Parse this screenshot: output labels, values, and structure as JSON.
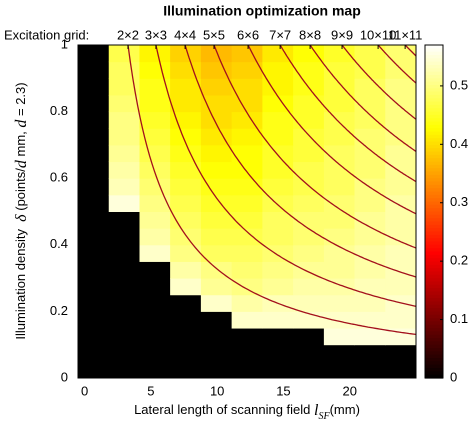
{
  "chart_data": {
    "type": "heatmap",
    "title": "Illumination optimization map",
    "top_axis_label": "Excitation grid:",
    "xlabel": [
      {
        "text": "Lateral length of scanning field "
      },
      {
        "text": "l",
        "italic": true
      },
      {
        "text": "SF",
        "italic": true,
        "subscript": true
      },
      {
        "text": "(mm)"
      }
    ],
    "ylabel": [
      {
        "text": "Illumination density  "
      },
      {
        "text": "δ",
        "italic": true
      },
      {
        "text": " (points/"
      },
      {
        "text": "d",
        "italic": true
      },
      {
        "text": " mm, "
      },
      {
        "text": "d",
        "italic": true
      },
      {
        "text": " = 2.3)"
      }
    ],
    "colormap": "hot",
    "xlim": [
      -0.5,
      25
    ],
    "ylim": [
      0,
      1
    ],
    "clim": [
      0,
      0.57
    ],
    "xticks": [
      0,
      5,
      10,
      15,
      20
    ],
    "yticks": [
      0,
      0.2,
      0.4,
      0.6,
      0.8,
      1
    ],
    "cticks": [
      0,
      0.1,
      0.2,
      0.3,
      0.4,
      0.5
    ],
    "top_ticks": [
      {
        "value": 3.27,
        "label": "2×2"
      },
      {
        "value": 5.38,
        "label": "3×3"
      },
      {
        "value": 7.58,
        "label": "4×4"
      },
      {
        "value": 9.76,
        "label": "5×5"
      },
      {
        "value": 12.33,
        "label": "6×6"
      },
      {
        "value": 14.75,
        "label": "7×7"
      },
      {
        "value": 17.01,
        "label": "8×8"
      },
      {
        "value": 19.42,
        "label": "9×9"
      },
      {
        "value": 22.14,
        "label": "10×10"
      },
      {
        "value": 24.18,
        "label": "11×11"
      }
    ],
    "contour_color": "#a3101c",
    "x_edges": [
      -0.5,
      1.82,
      4.14,
      6.45,
      8.77,
      11.09,
      13.41,
      15.73,
      18.05,
      20.36,
      22.68,
      25
    ],
    "y_edges": [
      0,
      0.05,
      0.1,
      0.15,
      0.2,
      0.25,
      0.3,
      0.35,
      0.4,
      0.45,
      0.5,
      0.55,
      0.6,
      0.65,
      0.7,
      0.75,
      0.8,
      0.85,
      0.9,
      0.95,
      1
    ],
    "values": [
      [
        null,
        null,
        null,
        null,
        null,
        null,
        null,
        null,
        null,
        null,
        null
      ],
      [
        null,
        null,
        null,
        null,
        null,
        null,
        null,
        null,
        null,
        null,
        null
      ],
      [
        null,
        null,
        null,
        null,
        null,
        null,
        null,
        null,
        0.55,
        0.55,
        0.55
      ],
      [
        null,
        null,
        null,
        null,
        null,
        0.54,
        0.54,
        0.54,
        0.54,
        0.54,
        0.54
      ],
      [
        null,
        null,
        null,
        null,
        0.54,
        0.52,
        0.53,
        0.53,
        0.53,
        0.53,
        0.54
      ],
      [
        null,
        null,
        null,
        0.54,
        0.51,
        0.5,
        0.51,
        0.52,
        0.52,
        0.53,
        0.53
      ],
      [
        null,
        null,
        null,
        0.52,
        0.5,
        0.49,
        0.5,
        0.51,
        0.51,
        0.52,
        0.53
      ],
      [
        null,
        null,
        0.54,
        0.5,
        0.48,
        0.48,
        0.49,
        0.5,
        0.51,
        0.52,
        0.53
      ],
      [
        null,
        null,
        0.52,
        0.49,
        0.47,
        0.47,
        0.48,
        0.49,
        0.5,
        0.51,
        0.52
      ],
      [
        null,
        null,
        0.51,
        0.48,
        0.46,
        0.46,
        0.48,
        0.49,
        0.49,
        0.51,
        0.52
      ],
      [
        null,
        0.55,
        0.5,
        0.47,
        0.45,
        0.45,
        0.47,
        0.48,
        0.49,
        0.5,
        0.52
      ],
      [
        null,
        0.53,
        0.49,
        0.46,
        0.44,
        0.44,
        0.46,
        0.47,
        0.48,
        0.5,
        0.51
      ],
      [
        null,
        0.52,
        0.48,
        0.45,
        0.43,
        0.43,
        0.45,
        0.47,
        0.48,
        0.49,
        0.51
      ],
      [
        null,
        0.51,
        0.47,
        0.44,
        0.42,
        0.43,
        0.45,
        0.46,
        0.48,
        0.49,
        0.51
      ],
      [
        null,
        0.5,
        0.46,
        0.43,
        0.41,
        0.42,
        0.44,
        0.46,
        0.47,
        0.49,
        0.5
      ],
      [
        null,
        0.5,
        0.45,
        0.42,
        0.4,
        0.41,
        0.44,
        0.45,
        0.47,
        0.48,
        0.5
      ],
      [
        null,
        0.49,
        0.44,
        0.41,
        0.4,
        0.4,
        0.43,
        0.45,
        0.46,
        0.48,
        0.5
      ],
      [
        null,
        0.48,
        0.44,
        0.41,
        0.39,
        0.4,
        0.42,
        0.44,
        0.46,
        0.48,
        0.5
      ],
      [
        null,
        0.48,
        0.43,
        0.4,
        0.38,
        0.39,
        0.42,
        0.44,
        0.46,
        0.47,
        0.49
      ],
      [
        null,
        0.47,
        0.42,
        0.39,
        0.37,
        0.38,
        0.41,
        0.43,
        0.45,
        0.47,
        0.49
      ]
    ]
  }
}
